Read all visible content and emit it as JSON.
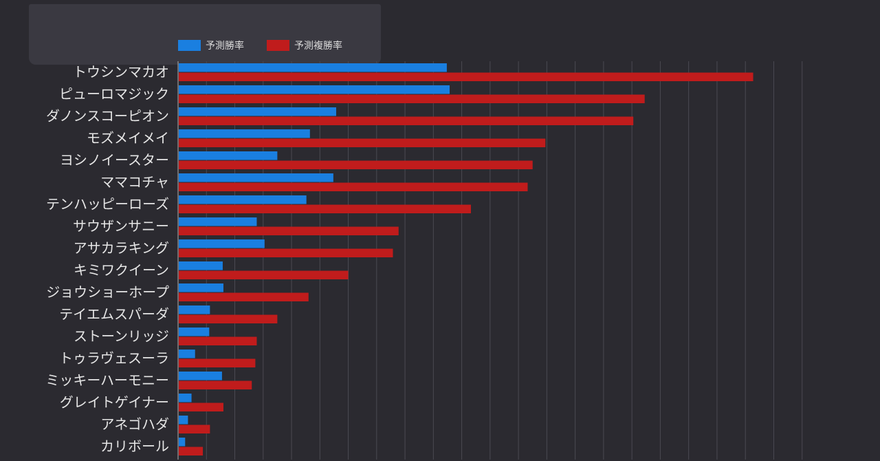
{
  "chart_data": {
    "type": "bar",
    "orientation": "horizontal",
    "categories": [
      "トウシンマカオ",
      "ピューロマジック",
      "ダノンスコーピオン",
      "モズメイメイ",
      "ヨシノイースター",
      "ママコチャ",
      "テンハッピーローズ",
      "サウザンサニー",
      "アサカラキング",
      "キミワクイーン",
      "ジョウショーホープ",
      "テイエムスパーダ",
      "ストーンリッジ",
      "トゥラヴェスーラ",
      "ミッキーハーモニー",
      "グレイトゲイナー",
      "アネゴハダ",
      "カリボール"
    ],
    "series": [
      {
        "name": "予測勝率",
        "color": "#1a7fe0",
        "values": [
          18.9,
          19.1,
          11.1,
          9.25,
          6.95,
          10.9,
          9.0,
          5.5,
          6.05,
          3.1,
          3.15,
          2.2,
          2.15,
          1.15,
          3.05,
          0.9,
          0.65,
          0.45
        ]
      },
      {
        "name": "予測複勝率",
        "color": "#c01c1c",
        "values": [
          40.5,
          32.85,
          32.05,
          25.85,
          24.95,
          24.6,
          20.6,
          15.5,
          15.1,
          11.95,
          9.15,
          6.95,
          5.5,
          5.4,
          5.15,
          3.15,
          2.2,
          1.7
        ]
      }
    ],
    "xlim": [
      0,
      45
    ],
    "grid": true,
    "grid_step": 2,
    "legend_position": "top-left",
    "colors": {
      "background": "#2b2a30",
      "label_text": "#e6e6e6",
      "legend_text": "#dcdcdc",
      "grid": "#4b4a52",
      "axis": "#9a9a9a"
    }
  }
}
